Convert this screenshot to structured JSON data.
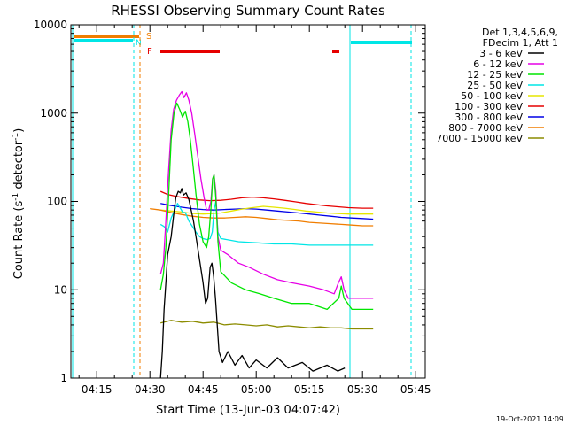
{
  "chart_data": {
    "type": "line",
    "title": "RHESSI Observing Summary Count Rates",
    "xlabel": "Start Time (13-Jun-03 04:07:42)",
    "ylabel": "Count Rate (s⁻¹ detector⁻¹)",
    "ylabel_main": "Count Rate (s",
    "ylabel_sup1": "-1",
    "ylabel_mid": " detector",
    "ylabel_sup2": "-1",
    "ylabel_end": ")",
    "y_scale": "log",
    "ylim": [
      1,
      10000
    ],
    "xlim_minutes": [
      247.7,
      347.7
    ],
    "y_ticks": [
      1,
      10,
      100,
      1000,
      10000
    ],
    "y_tick_labels": [
      "1",
      "10",
      "100",
      "1000",
      "10000"
    ],
    "x_ticks_minutes": [
      255,
      270,
      285,
      300,
      315,
      330,
      345
    ],
    "x_tick_labels": [
      "04:15",
      "04:30",
      "04:45",
      "05:00",
      "05:15",
      "05:30",
      "05:45"
    ],
    "legend_header": [
      "Det 1,3,4,5,6,9,",
      "FDecim 1, Att 1"
    ],
    "legend_placement": "right",
    "footer": "19-Oct-2021 14:09",
    "flags": [
      {
        "label": "S",
        "color": "#f07d00"
      },
      {
        "label": "F",
        "color": "#e60000"
      }
    ],
    "series": [
      {
        "name": "3 - 6 keV",
        "color": "#000000",
        "points": [
          [
            273,
            1
          ],
          [
            273.5,
            2
          ],
          [
            274,
            6
          ],
          [
            274.5,
            12
          ],
          [
            275,
            25
          ],
          [
            276,
            40
          ],
          [
            276.7,
            70
          ],
          [
            277.3,
            110
          ],
          [
            278,
            130
          ],
          [
            278.6,
            125
          ],
          [
            279,
            140
          ],
          [
            279.5,
            118
          ],
          [
            280.2,
            125
          ],
          [
            281,
            105
          ],
          [
            281.5,
            85
          ],
          [
            282.3,
            60
          ],
          [
            283,
            40
          ],
          [
            284,
            22
          ],
          [
            285,
            12
          ],
          [
            285.7,
            7
          ],
          [
            286.3,
            8
          ],
          [
            287,
            18
          ],
          [
            287.5,
            20
          ],
          [
            288,
            14
          ],
          [
            288.5,
            8
          ],
          [
            289,
            4
          ],
          [
            289.5,
            2
          ],
          [
            290.5,
            1.5
          ],
          [
            292,
            2
          ],
          [
            294,
            1.4
          ],
          [
            296,
            1.8
          ],
          [
            298,
            1.3
          ],
          [
            300,
            1.6
          ],
          [
            303,
            1.3
          ],
          [
            306,
            1.7
          ],
          [
            309,
            1.3
          ],
          [
            313,
            1.5
          ],
          [
            316,
            1.2
          ],
          [
            320,
            1.4
          ],
          [
            323,
            1.2
          ],
          [
            325,
            1.3
          ]
        ]
      },
      {
        "name": "6 - 12 keV",
        "color": "#e600e6",
        "points": [
          [
            273,
            15
          ],
          [
            273.8,
            20
          ],
          [
            274.5,
            60
          ],
          [
            275.2,
            200
          ],
          [
            276,
            650
          ],
          [
            276.7,
            1100
          ],
          [
            277.5,
            1400
          ],
          [
            278.3,
            1600
          ],
          [
            279,
            1750
          ],
          [
            279.6,
            1500
          ],
          [
            280.3,
            1700
          ],
          [
            281,
            1400
          ],
          [
            281.8,
            1000
          ],
          [
            282.6,
            600
          ],
          [
            283.4,
            350
          ],
          [
            284.4,
            180
          ],
          [
            285.3,
            110
          ],
          [
            286,
            80
          ],
          [
            286.6,
            80
          ],
          [
            287.2,
            100
          ],
          [
            287.7,
            180
          ],
          [
            288.1,
            200
          ],
          [
            288.6,
            130
          ],
          [
            289.2,
            40
          ],
          [
            290,
            28
          ],
          [
            292,
            25
          ],
          [
            295,
            20
          ],
          [
            298,
            18
          ],
          [
            302,
            15
          ],
          [
            306,
            13
          ],
          [
            310,
            12
          ],
          [
            315,
            11
          ],
          [
            319,
            10
          ],
          [
            322,
            9
          ],
          [
            323.2,
            12
          ],
          [
            324,
            14
          ],
          [
            324.8,
            10
          ],
          [
            326,
            8
          ],
          [
            329,
            8
          ],
          [
            333,
            8
          ]
        ]
      },
      {
        "name": "12 - 25 keV",
        "color": "#00e600",
        "points": [
          [
            273,
            10
          ],
          [
            273.8,
            15
          ],
          [
            274.5,
            30
          ],
          [
            275.2,
            100
          ],
          [
            276,
            500
          ],
          [
            276.8,
            1000
          ],
          [
            277.6,
            1300
          ],
          [
            278.4,
            1100
          ],
          [
            279.2,
            900
          ],
          [
            280,
            1050
          ],
          [
            280.7,
            800
          ],
          [
            281.4,
            500
          ],
          [
            282.2,
            250
          ],
          [
            283,
            120
          ],
          [
            284,
            55
          ],
          [
            285,
            35
          ],
          [
            286,
            30
          ],
          [
            286.6,
            40
          ],
          [
            287.2,
            80
          ],
          [
            287.7,
            180
          ],
          [
            288.1,
            200
          ],
          [
            288.6,
            110
          ],
          [
            289.2,
            35
          ],
          [
            290,
            16
          ],
          [
            293,
            12
          ],
          [
            297,
            10
          ],
          [
            301,
            9
          ],
          [
            305,
            8
          ],
          [
            310,
            7
          ],
          [
            315,
            7
          ],
          [
            320,
            6
          ],
          [
            323.3,
            8
          ],
          [
            324,
            11
          ],
          [
            324.8,
            8
          ],
          [
            327,
            6
          ],
          [
            330,
            6
          ],
          [
            333,
            6
          ]
        ]
      },
      {
        "name": "25 - 50 keV",
        "color": "#00e6e6",
        "points": [
          [
            273,
            55
          ],
          [
            274,
            52
          ],
          [
            275,
            45
          ],
          [
            276,
            65
          ],
          [
            277,
            80
          ],
          [
            277.8,
            95
          ],
          [
            278.5,
            85
          ],
          [
            279.3,
            75
          ],
          [
            280,
            75
          ],
          [
            281,
            60
          ],
          [
            282,
            52
          ],
          [
            283,
            45
          ],
          [
            284,
            40
          ],
          [
            285,
            38
          ],
          [
            286,
            37
          ],
          [
            287,
            38
          ],
          [
            287.6,
            45
          ],
          [
            288.1,
            80
          ],
          [
            288.6,
            100
          ],
          [
            289.2,
            45
          ],
          [
            290,
            38
          ],
          [
            295,
            35
          ],
          [
            300,
            34
          ],
          [
            305,
            33
          ],
          [
            310,
            33
          ],
          [
            315,
            32
          ],
          [
            320,
            32
          ],
          [
            325,
            32
          ],
          [
            330,
            32
          ],
          [
            333,
            32
          ]
        ]
      },
      {
        "name": "50 - 100 keV",
        "color": "#e6e600",
        "points": [
          [
            273,
            80
          ],
          [
            276,
            78
          ],
          [
            279,
            76
          ],
          [
            282,
            73
          ],
          [
            285,
            72
          ],
          [
            288,
            73
          ],
          [
            290,
            74
          ],
          [
            293,
            78
          ],
          [
            296,
            82
          ],
          [
            299,
            85
          ],
          [
            302,
            88
          ],
          [
            305,
            86
          ],
          [
            308,
            84
          ],
          [
            311,
            81
          ],
          [
            314,
            78
          ],
          [
            317,
            76
          ],
          [
            320,
            74
          ],
          [
            323,
            73
          ],
          [
            326,
            72
          ],
          [
            330,
            72
          ],
          [
            333,
            72
          ]
        ]
      },
      {
        "name": "100 - 300 keV",
        "color": "#e60000",
        "points": [
          [
            273,
            130
          ],
          [
            275,
            120
          ],
          [
            278,
            113
          ],
          [
            281,
            108
          ],
          [
            284,
            104
          ],
          [
            287,
            102
          ],
          [
            290,
            103
          ],
          [
            293,
            106
          ],
          [
            296,
            110
          ],
          [
            299,
            112
          ],
          [
            302,
            110
          ],
          [
            305,
            107
          ],
          [
            308,
            103
          ],
          [
            311,
            99
          ],
          [
            314,
            95
          ],
          [
            317,
            92
          ],
          [
            320,
            89
          ],
          [
            323,
            87
          ],
          [
            326,
            85
          ],
          [
            330,
            84
          ],
          [
            333,
            84
          ]
        ]
      },
      {
        "name": "300 - 800 keV",
        "color": "#0000e6",
        "points": [
          [
            273,
            95
          ],
          [
            276,
            90
          ],
          [
            279,
            86
          ],
          [
            282,
            83
          ],
          [
            285,
            81
          ],
          [
            288,
            80
          ],
          [
            291,
            81
          ],
          [
            294,
            82
          ],
          [
            297,
            83
          ],
          [
            300,
            82
          ],
          [
            303,
            80
          ],
          [
            306,
            78
          ],
          [
            309,
            76
          ],
          [
            312,
            74
          ],
          [
            315,
            72
          ],
          [
            318,
            70
          ],
          [
            321,
            68
          ],
          [
            324,
            66
          ],
          [
            327,
            65
          ],
          [
            330,
            64
          ],
          [
            333,
            63
          ]
        ]
      },
      {
        "name": "800 - 7000 keV",
        "color": "#f07d00",
        "points": [
          [
            270,
            83
          ],
          [
            273,
            80
          ],
          [
            276,
            75
          ],
          [
            279,
            71
          ],
          [
            282,
            68
          ],
          [
            285,
            66
          ],
          [
            288,
            65
          ],
          [
            291,
            65
          ],
          [
            294,
            66
          ],
          [
            297,
            67
          ],
          [
            300,
            66
          ],
          [
            303,
            64
          ],
          [
            306,
            62
          ],
          [
            309,
            61
          ],
          [
            312,
            60
          ],
          [
            315,
            58
          ],
          [
            318,
            57
          ],
          [
            321,
            56
          ],
          [
            324,
            55
          ],
          [
            327,
            54
          ],
          [
            330,
            53
          ],
          [
            333,
            53
          ]
        ]
      },
      {
        "name": "7000 - 15000 keV",
        "color": "#8c8c00",
        "points": [
          [
            273,
            4.2
          ],
          [
            276,
            4.5
          ],
          [
            279,
            4.3
          ],
          [
            282,
            4.4
          ],
          [
            285,
            4.2
          ],
          [
            288,
            4.3
          ],
          [
            291,
            4.0
          ],
          [
            294,
            4.1
          ],
          [
            297,
            4.0
          ],
          [
            300,
            3.9
          ],
          [
            303,
            4.0
          ],
          [
            306,
            3.8
          ],
          [
            309,
            3.9
          ],
          [
            312,
            3.8
          ],
          [
            315,
            3.7
          ],
          [
            318,
            3.8
          ],
          [
            321,
            3.7
          ],
          [
            324,
            3.7
          ],
          [
            327,
            3.6
          ],
          [
            330,
            3.6
          ],
          [
            333,
            3.6
          ]
        ]
      }
    ]
  }
}
